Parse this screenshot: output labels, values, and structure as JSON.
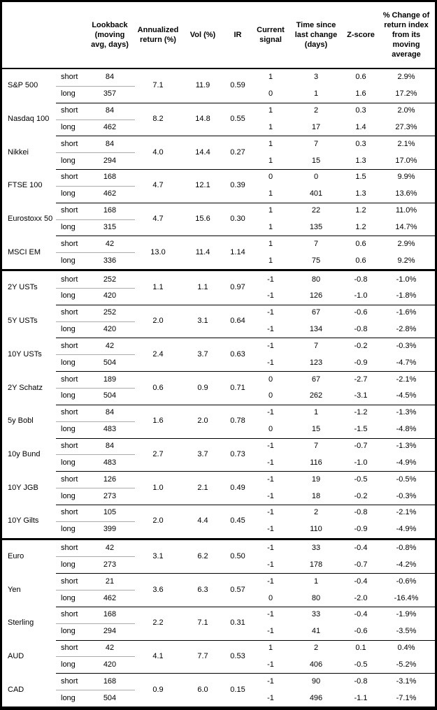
{
  "chart_data": {
    "type": "table",
    "columns": [
      "Lookback (moving avg, days)",
      "Annualized return (%)",
      "Vol (%)",
      "IR",
      "Current signal",
      "Time since last change (days)",
      "Z-score",
      "% Change of return index from its moving average"
    ],
    "colors": {
      "border": "#000000",
      "row_divider": "#000000",
      "horizon_divider": "#aaaaaa",
      "text": "#000000",
      "background": "#ffffff"
    },
    "sections": [
      [
        {
          "name": "S&P 500",
          "ann_return": "7.1",
          "vol": "11.9",
          "ir": "0.59",
          "rows": [
            {
              "horizon": "short",
              "lookback": "84",
              "signal": "1",
              "time": "3",
              "zscore": "0.6",
              "pct_change": "2.9%"
            },
            {
              "horizon": "long",
              "lookback": "357",
              "signal": "0",
              "time": "1",
              "zscore": "1.6",
              "pct_change": "17.2%"
            }
          ]
        },
        {
          "name": "Nasdaq 100",
          "ann_return": "8.2",
          "vol": "14.8",
          "ir": "0.55",
          "rows": [
            {
              "horizon": "short",
              "lookback": "84",
              "signal": "1",
              "time": "2",
              "zscore": "0.3",
              "pct_change": "2.0%"
            },
            {
              "horizon": "long",
              "lookback": "462",
              "signal": "1",
              "time": "17",
              "zscore": "1.4",
              "pct_change": "27.3%"
            }
          ]
        },
        {
          "name": "Nikkei",
          "ann_return": "4.0",
          "vol": "14.4",
          "ir": "0.27",
          "rows": [
            {
              "horizon": "short",
              "lookback": "84",
              "signal": "1",
              "time": "7",
              "zscore": "0.3",
              "pct_change": "2.1%"
            },
            {
              "horizon": "long",
              "lookback": "294",
              "signal": "1",
              "time": "15",
              "zscore": "1.3",
              "pct_change": "17.0%"
            }
          ]
        },
        {
          "name": "FTSE 100",
          "ann_return": "4.7",
          "vol": "12.1",
          "ir": "0.39",
          "rows": [
            {
              "horizon": "short",
              "lookback": "168",
              "signal": "0",
              "time": "0",
              "zscore": "1.5",
              "pct_change": "9.9%"
            },
            {
              "horizon": "long",
              "lookback": "462",
              "signal": "1",
              "time": "401",
              "zscore": "1.3",
              "pct_change": "13.6%"
            }
          ]
        },
        {
          "name": "Eurostoxx 50",
          "ann_return": "4.7",
          "vol": "15.6",
          "ir": "0.30",
          "rows": [
            {
              "horizon": "short",
              "lookback": "168",
              "signal": "1",
              "time": "22",
              "zscore": "1.2",
              "pct_change": "11.0%"
            },
            {
              "horizon": "long",
              "lookback": "315",
              "signal": "1",
              "time": "135",
              "zscore": "1.2",
              "pct_change": "14.7%"
            }
          ]
        },
        {
          "name": "MSCI EM",
          "ann_return": "13.0",
          "vol": "11.4",
          "ir": "1.14",
          "rows": [
            {
              "horizon": "short",
              "lookback": "42",
              "signal": "1",
              "time": "7",
              "zscore": "0.6",
              "pct_change": "2.9%"
            },
            {
              "horizon": "long",
              "lookback": "336",
              "signal": "1",
              "time": "75",
              "zscore": "0.6",
              "pct_change": "9.2%"
            }
          ]
        }
      ],
      [
        {
          "name": "2Y USTs",
          "ann_return": "1.1",
          "vol": "1.1",
          "ir": "0.97",
          "rows": [
            {
              "horizon": "short",
              "lookback": "252",
              "signal": "-1",
              "time": "80",
              "zscore": "-0.8",
              "pct_change": "-1.0%"
            },
            {
              "horizon": "long",
              "lookback": "420",
              "signal": "-1",
              "time": "126",
              "zscore": "-1.0",
              "pct_change": "-1.8%"
            }
          ]
        },
        {
          "name": "5Y USTs",
          "ann_return": "2.0",
          "vol": "3.1",
          "ir": "0.64",
          "rows": [
            {
              "horizon": "short",
              "lookback": "252",
              "signal": "-1",
              "time": "67",
              "zscore": "-0.6",
              "pct_change": "-1.6%"
            },
            {
              "horizon": "long",
              "lookback": "420",
              "signal": "-1",
              "time": "134",
              "zscore": "-0.8",
              "pct_change": "-2.8%"
            }
          ]
        },
        {
          "name": "10Y USTs",
          "ann_return": "2.4",
          "vol": "3.7",
          "ir": "0.63",
          "rows": [
            {
              "horizon": "short",
              "lookback": "42",
              "signal": "-1",
              "time": "7",
              "zscore": "-0.2",
              "pct_change": "-0.3%"
            },
            {
              "horizon": "long",
              "lookback": "504",
              "signal": "-1",
              "time": "123",
              "zscore": "-0.9",
              "pct_change": "-4.7%"
            }
          ]
        },
        {
          "name": "2Y Schatz",
          "ann_return": "0.6",
          "vol": "0.9",
          "ir": "0.71",
          "rows": [
            {
              "horizon": "short",
              "lookback": "189",
              "signal": "0",
              "time": "67",
              "zscore": "-2.7",
              "pct_change": "-2.1%"
            },
            {
              "horizon": "long",
              "lookback": "504",
              "signal": "0",
              "time": "262",
              "zscore": "-3.1",
              "pct_change": "-4.5%"
            }
          ]
        },
        {
          "name": "5y Bobl",
          "ann_return": "1.6",
          "vol": "2.0",
          "ir": "0.78",
          "rows": [
            {
              "horizon": "short",
              "lookback": "84",
              "signal": "-1",
              "time": "1",
              "zscore": "-1.2",
              "pct_change": "-1.3%"
            },
            {
              "horizon": "long",
              "lookback": "483",
              "signal": "0",
              "time": "15",
              "zscore": "-1.5",
              "pct_change": "-4.8%"
            }
          ]
        },
        {
          "name": "10y Bund",
          "ann_return": "2.7",
          "vol": "3.7",
          "ir": "0.73",
          "rows": [
            {
              "horizon": "short",
              "lookback": "84",
              "signal": "-1",
              "time": "7",
              "zscore": "-0.7",
              "pct_change": "-1.3%"
            },
            {
              "horizon": "long",
              "lookback": "483",
              "signal": "-1",
              "time": "116",
              "zscore": "-1.0",
              "pct_change": "-4.9%"
            }
          ]
        },
        {
          "name": "10Y JGB",
          "ann_return": "1.0",
          "vol": "2.1",
          "ir": "0.49",
          "rows": [
            {
              "horizon": "short",
              "lookback": "126",
              "signal": "-1",
              "time": "19",
              "zscore": "-0.5",
              "pct_change": "-0.5%"
            },
            {
              "horizon": "long",
              "lookback": "273",
              "signal": "-1",
              "time": "18",
              "zscore": "-0.2",
              "pct_change": "-0.3%"
            }
          ]
        },
        {
          "name": "10Y Gilts",
          "ann_return": "2.0",
          "vol": "4.4",
          "ir": "0.45",
          "rows": [
            {
              "horizon": "short",
              "lookback": "105",
              "signal": "-1",
              "time": "2",
              "zscore": "-0.8",
              "pct_change": "-2.1%"
            },
            {
              "horizon": "long",
              "lookback": "399",
              "signal": "-1",
              "time": "110",
              "zscore": "-0.9",
              "pct_change": "-4.9%"
            }
          ]
        }
      ],
      [
        {
          "name": "Euro",
          "ann_return": "3.1",
          "vol": "6.2",
          "ir": "0.50",
          "rows": [
            {
              "horizon": "short",
              "lookback": "42",
              "signal": "-1",
              "time": "33",
              "zscore": "-0.4",
              "pct_change": "-0.8%"
            },
            {
              "horizon": "long",
              "lookback": "273",
              "signal": "-1",
              "time": "178",
              "zscore": "-0.7",
              "pct_change": "-4.2%"
            }
          ]
        },
        {
          "name": "Yen",
          "ann_return": "3.6",
          "vol": "6.3",
          "ir": "0.57",
          "rows": [
            {
              "horizon": "short",
              "lookback": "21",
              "signal": "-1",
              "time": "1",
              "zscore": "-0.4",
              "pct_change": "-0.6%"
            },
            {
              "horizon": "long",
              "lookback": "462",
              "signal": "0",
              "time": "80",
              "zscore": "-2.0",
              "pct_change": "-16.4%"
            }
          ]
        },
        {
          "name": "Sterling",
          "ann_return": "2.2",
          "vol": "7.1",
          "ir": "0.31",
          "rows": [
            {
              "horizon": "short",
              "lookback": "168",
              "signal": "-1",
              "time": "33",
              "zscore": "-0.4",
              "pct_change": "-1.9%"
            },
            {
              "horizon": "long",
              "lookback": "294",
              "signal": "-1",
              "time": "41",
              "zscore": "-0.6",
              "pct_change": "-3.5%"
            }
          ]
        },
        {
          "name": "AUD",
          "ann_return": "4.1",
          "vol": "7.7",
          "ir": "0.53",
          "rows": [
            {
              "horizon": "short",
              "lookback": "42",
              "signal": "1",
              "time": "2",
              "zscore": "0.1",
              "pct_change": "0.4%"
            },
            {
              "horizon": "long",
              "lookback": "420",
              "signal": "-1",
              "time": "406",
              "zscore": "-0.5",
              "pct_change": "-5.2%"
            }
          ]
        },
        {
          "name": "CAD",
          "ann_return": "0.9",
          "vol": "6.0",
          "ir": "0.15",
          "rows": [
            {
              "horizon": "short",
              "lookback": "168",
              "signal": "-1",
              "time": "90",
              "zscore": "-0.8",
              "pct_change": "-3.1%"
            },
            {
              "horizon": "long",
              "lookback": "504",
              "signal": "-1",
              "time": "496",
              "zscore": "-1.1",
              "pct_change": "-7.1%"
            }
          ]
        }
      ]
    ]
  }
}
